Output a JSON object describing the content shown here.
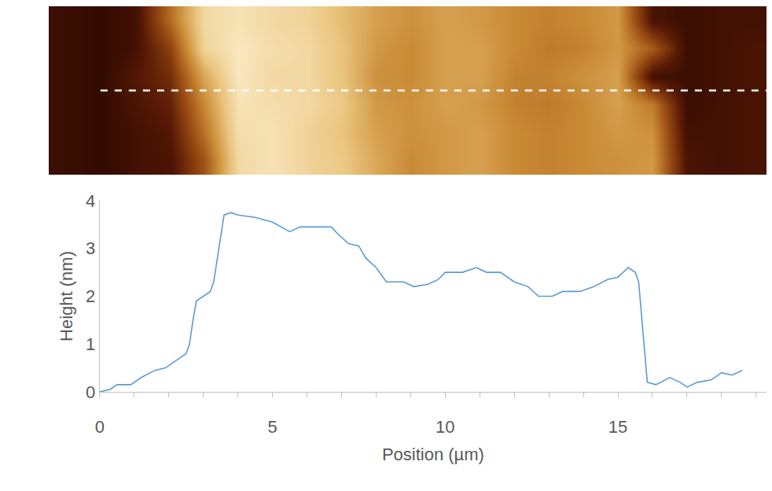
{
  "chart_data": [
    {
      "type": "heatmap",
      "tick_labels": false,
      "x": [
        -1,
        0,
        1,
        2,
        3,
        4,
        5,
        6,
        7,
        8,
        9,
        10,
        11,
        12,
        13,
        14,
        15,
        16,
        17,
        18,
        19
      ],
      "y": [
        0,
        1,
        2,
        3,
        4,
        5
      ],
      "xlim": [
        -1.5,
        19.3
      ],
      "ylim": [
        5.5,
        -0.5
      ],
      "zlim": [
        0,
        4
      ],
      "cells": [
        [
          0.2,
          0.1,
          0.3,
          1.8,
          3.4,
          3.6,
          3.4,
          3.3,
          2.9,
          2.5,
          2.3,
          2.5,
          2.4,
          2.2,
          2.1,
          2.2,
          2.4,
          0.4,
          0.2,
          0.3,
          0.3
        ],
        [
          0.2,
          0.1,
          0.3,
          1.2,
          3.3,
          3.7,
          3.5,
          3.4,
          3.0,
          2.4,
          2.2,
          2.5,
          2.5,
          2.2,
          2.0,
          2.1,
          2.4,
          1.6,
          0.2,
          0.3,
          0.4
        ],
        [
          0.2,
          0.1,
          0.5,
          0.9,
          2.6,
          3.7,
          3.4,
          3.4,
          3.0,
          2.3,
          2.2,
          2.5,
          2.5,
          2.1,
          2.1,
          2.3,
          2.5,
          0.3,
          0.2,
          0.3,
          0.4
        ],
        [
          0.2,
          0.1,
          0.4,
          0.7,
          2.2,
          3.6,
          3.5,
          3.4,
          3.1,
          2.4,
          2.3,
          2.5,
          2.4,
          2.1,
          2.0,
          2.2,
          2.5,
          2.0,
          0.2,
          0.3,
          0.4
        ],
        [
          0.2,
          0.1,
          0.3,
          0.5,
          1.9,
          3.5,
          3.6,
          3.3,
          3.0,
          2.5,
          2.3,
          2.4,
          2.5,
          2.2,
          2.1,
          2.2,
          2.4,
          2.3,
          0.3,
          0.3,
          0.4
        ],
        [
          0.2,
          0.1,
          0.3,
          0.4,
          1.5,
          3.4,
          3.6,
          3.3,
          3.1,
          2.6,
          2.2,
          2.4,
          2.5,
          2.2,
          2.1,
          2.2,
          2.3,
          2.4,
          0.4,
          0.3,
          0.4
        ]
      ],
      "scan_line": {
        "x": [
          0,
          19.3
        ],
        "y": 2.5,
        "color": "#ffffff",
        "line_style": "dashed"
      }
    },
    {
      "type": "line",
      "x_label": "Position (µm)",
      "y_label": "Height (nm)",
      "color": "#5b9bd5",
      "grid": false,
      "xlim": [
        0,
        19.3
      ],
      "ylim": [
        0,
        4
      ],
      "xticks": [
        0,
        5,
        10,
        15
      ],
      "yticks": [
        0,
        1,
        2,
        3,
        4
      ],
      "x": [
        0,
        0.3,
        0.5,
        0.9,
        1.2,
        1.6,
        1.9,
        2.1,
        2.3,
        2.5,
        2.6,
        2.7,
        2.8,
        3.0,
        3.2,
        3.3,
        3.45,
        3.6,
        3.8,
        4.0,
        4.5,
        5.0,
        5.5,
        5.8,
        6.2,
        6.7,
        6.9,
        7.2,
        7.5,
        7.7,
        8.0,
        8.3,
        8.8,
        9.1,
        9.5,
        9.8,
        10.0,
        10.5,
        10.9,
        11.2,
        11.6,
        12.0,
        12.4,
        12.7,
        13.1,
        13.4,
        13.9,
        14.3,
        14.7,
        15.0,
        15.3,
        15.5,
        15.6,
        15.75,
        15.85,
        16.1,
        16.5,
        16.8,
        17.0,
        17.3,
        17.7,
        18.0,
        18.3,
        18.6
      ],
      "values": [
        0,
        0.05,
        0.15,
        0.15,
        0.3,
        0.45,
        0.5,
        0.6,
        0.7,
        0.8,
        1.0,
        1.5,
        1.9,
        2.0,
        2.1,
        2.3,
        3.0,
        3.7,
        3.75,
        3.7,
        3.65,
        3.55,
        3.35,
        3.45,
        3.45,
        3.45,
        3.3,
        3.1,
        3.05,
        2.8,
        2.6,
        2.3,
        2.3,
        2.2,
        2.25,
        2.35,
        2.5,
        2.5,
        2.6,
        2.5,
        2.5,
        2.3,
        2.2,
        2.0,
        2.0,
        2.1,
        2.1,
        2.2,
        2.35,
        2.4,
        2.6,
        2.5,
        2.3,
        1.0,
        0.2,
        0.15,
        0.3,
        0.2,
        0.1,
        0.2,
        0.25,
        0.4,
        0.35,
        0.45
      ]
    }
  ]
}
